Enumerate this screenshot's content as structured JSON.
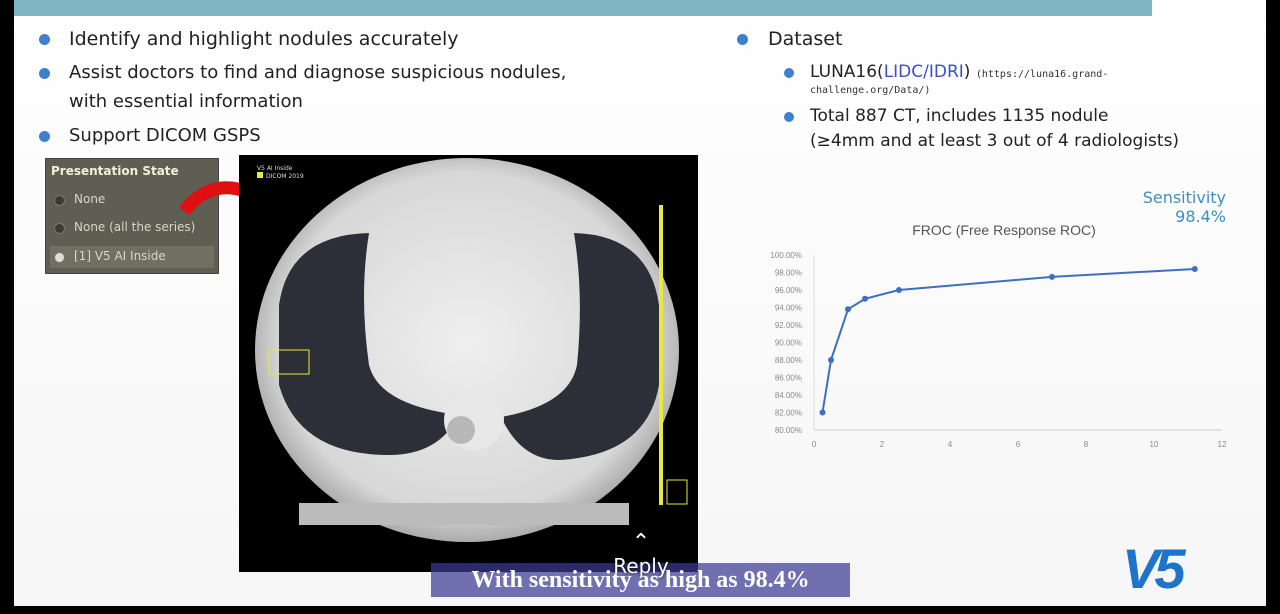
{
  "bullets_left": [
    {
      "text": "Identify and highlight nodules accurately"
    },
    {
      "text": "Assist doctors to find and diagnose suspicious nodules,",
      "continuation": "with essential information"
    },
    {
      "text": "Support DICOM GSPS"
    }
  ],
  "dataset": {
    "title": "Dataset",
    "luna_prefix": "LUNA16(",
    "luna_link": "LIDC/IDRI",
    "luna_suffix": ")",
    "luna_url_1": "(https://luna16.grand-",
    "luna_url_2": "challenge.org/Data/)",
    "total_1": "Total 887 CT, includes 1135 nodule",
    "total_2": "(≥4mm and at least 3 out of 4 radiologists)"
  },
  "presentation_state": {
    "title": "Presentation State",
    "items": [
      "None",
      "None (all the series)",
      "[1] V5 AI Inside"
    ],
    "selected": 2
  },
  "ct_overlay": {
    "label_1": "V5 AI Inside",
    "label_2": "DICOM 2019"
  },
  "sensitivity": {
    "label": "Sensitivity",
    "value": "98.4%"
  },
  "chart_data": {
    "type": "line",
    "title": "FROC (Free Response ROC)",
    "x": [
      0.25,
      0.5,
      1,
      1.5,
      2.5,
      7,
      11.2
    ],
    "y": [
      82.0,
      88.0,
      93.8,
      95.0,
      96.0,
      97.5,
      98.4
    ],
    "xlim": [
      0,
      12
    ],
    "ylim": [
      80,
      100
    ],
    "xticks": [
      "0",
      "2",
      "4",
      "6",
      "8",
      "10",
      "12"
    ],
    "yticks": [
      "80.00%",
      "82.00%",
      "84.00%",
      "86.00%",
      "88.00%",
      "90.00%",
      "92.00%",
      "94.00%",
      "96.00%",
      "98.00%",
      "100.00%"
    ],
    "color": "#3f6fbf",
    "grid": false
  },
  "logo": "V5",
  "caption": "With sensitivity as high as 98.4%",
  "reply": "Reply"
}
